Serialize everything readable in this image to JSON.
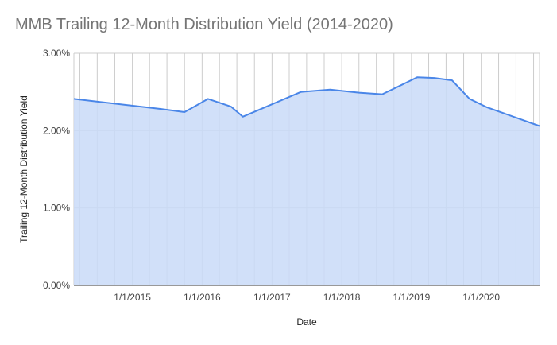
{
  "chart_data": {
    "type": "area",
    "title": "MMB Trailing 12-Month Distribution Yield (2014-2020)",
    "xlabel": "Date",
    "ylabel": "Trailing 12-Month Distribution Yield",
    "x_tick_labels": [
      "1/1/2015",
      "1/1/2016",
      "1/1/2017",
      "1/1/2018",
      "1/1/2019",
      "1/1/2020"
    ],
    "y_tick_labels": [
      "0.00%",
      "1.00%",
      "2.00%",
      "3.00%"
    ],
    "y_ticks": [
      0,
      1,
      2,
      3
    ],
    "ylim": [
      0,
      3
    ],
    "xlim": [
      "2014-03-01",
      "2020-11-01"
    ],
    "grid": true,
    "legend": "none",
    "series": [
      {
        "x": [
          "2014-03-01",
          "2015-06-01",
          "2015-10-01",
          "2016-02-01",
          "2016-06-01",
          "2016-08-01",
          "2017-06-01",
          "2017-11-01",
          "2018-04-01",
          "2018-08-01",
          "2019-02-01",
          "2019-05-01",
          "2019-08-01",
          "2019-11-01",
          "2020-02-01",
          "2020-11-01"
        ],
        "values": [
          2.41,
          2.28,
          2.24,
          2.41,
          2.31,
          2.18,
          2.5,
          2.53,
          2.49,
          2.47,
          2.69,
          2.68,
          2.65,
          2.41,
          2.3,
          2.06
        ]
      }
    ],
    "colors": {
      "line": "#4a86e8",
      "fill": "#c9daf8",
      "grid": "#cccccc",
      "axis_text": "#444444",
      "title": "#757575"
    }
  }
}
